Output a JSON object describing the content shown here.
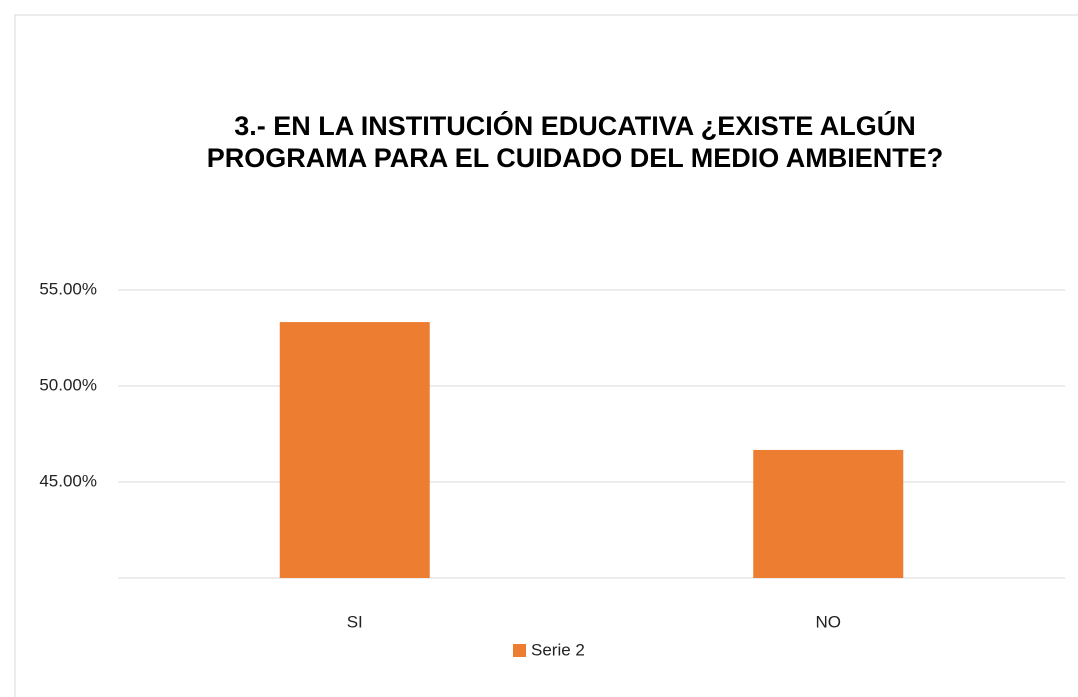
{
  "chart_data": {
    "type": "bar",
    "title": "3.- EN LA INSTITUCIÓN EDUCATIVA ¿EXISTE ALGÚN PROGRAMA PARA EL CUIDADO DEL MEDIO AMBIENTE?",
    "categories": [
      "SI",
      "NO"
    ],
    "series": [
      {
        "name": "Serie 2",
        "color": "#ed7d31",
        "values": [
          53.33,
          46.67
        ]
      }
    ],
    "ylim": [
      40,
      55
    ],
    "yticks": [
      {
        "value": 45,
        "label": "45.00%"
      },
      {
        "value": 50,
        "label": "50.00%"
      },
      {
        "value": 55,
        "label": "55.00%"
      }
    ],
    "grid": true,
    "legend": "bottom"
  }
}
